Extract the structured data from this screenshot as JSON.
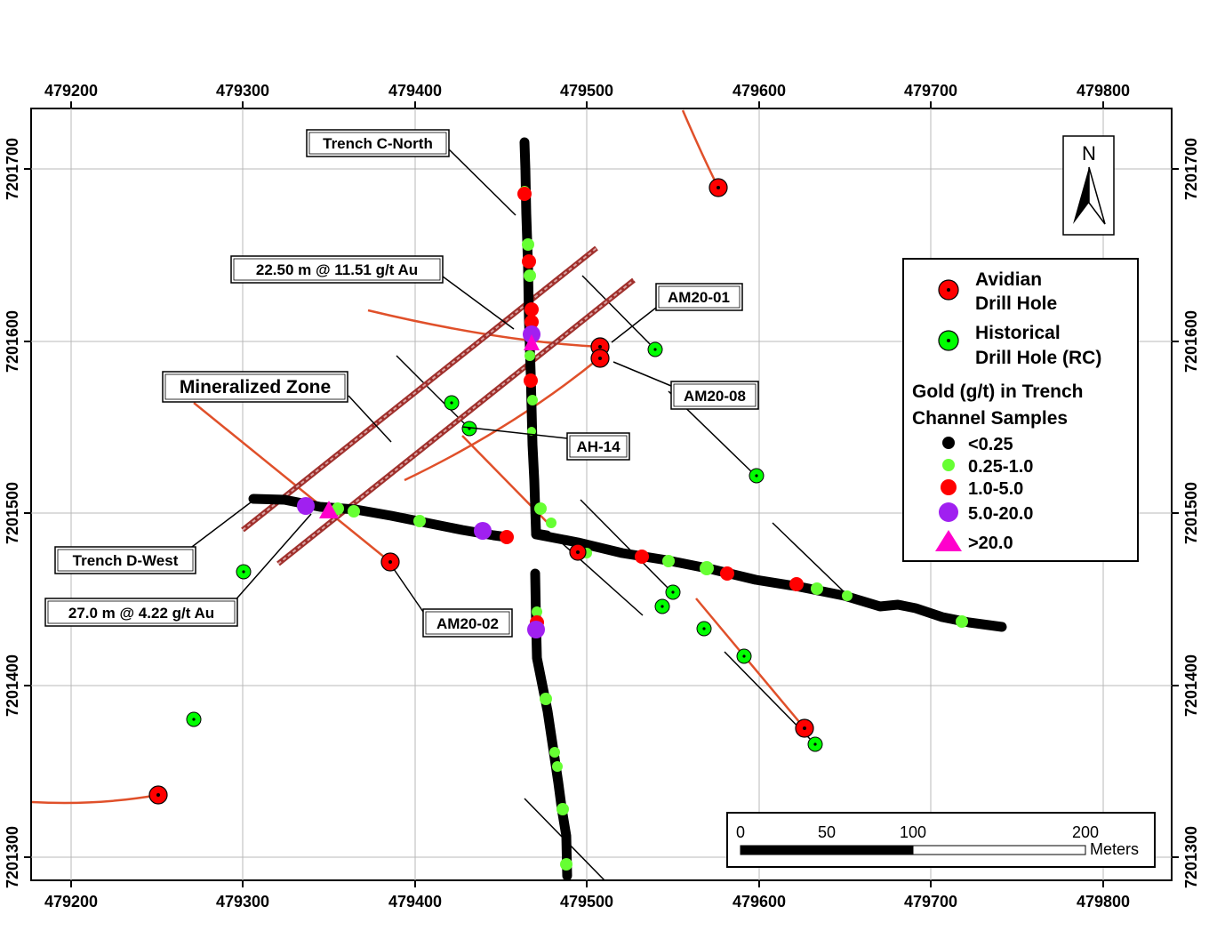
{
  "map": {
    "x_ticks": [
      "479200",
      "479300",
      "479400",
      "479500",
      "479600",
      "479700",
      "479800"
    ],
    "y_ticks": [
      "7201700",
      "7201600",
      "7201500",
      "7201400",
      "7201300"
    ],
    "north_label": "N",
    "callouts": {
      "trench_c_north": "Trench C-North",
      "intercept_1": "22.50 m @ 11.51 g/t Au",
      "am20_01": "AM20-01",
      "mineralized_zone": "Mineralized Zone",
      "am20_08": "AM20-08",
      "ah_14": "AH-14",
      "trench_d_west": "Trench D-West",
      "intercept_2": "27.0 m @ 4.22 g/t Au",
      "am20_02": "AM20-02"
    },
    "legend": {
      "avidian_line1": "Avidian",
      "avidian_line2": "Drill Hole",
      "historical_line1": "Historical",
      "historical_line2": "Drill Hole (RC)",
      "gold_title_line1": "Gold (g/t) in Trench",
      "gold_title_line2": "Channel Samples",
      "classes": [
        "<0.25",
        "0.25-1.0",
        "1.0-5.0",
        "5.0-20.0",
        ">20.0"
      ]
    },
    "scale_bar": {
      "labels": [
        "0",
        "50",
        "100",
        "200"
      ],
      "unit": "Meters"
    },
    "colors": {
      "avidian": "#ff0000",
      "historical": "#00ff00",
      "lt_0_25": "#000000",
      "g_0_25_1": "#66ff33",
      "g_1_5": "#ff0000",
      "g_5_20": "#a020f0",
      "gt_20": "#ff00cc",
      "trace": "#e0502a",
      "zone": "#c0504d"
    }
  }
}
